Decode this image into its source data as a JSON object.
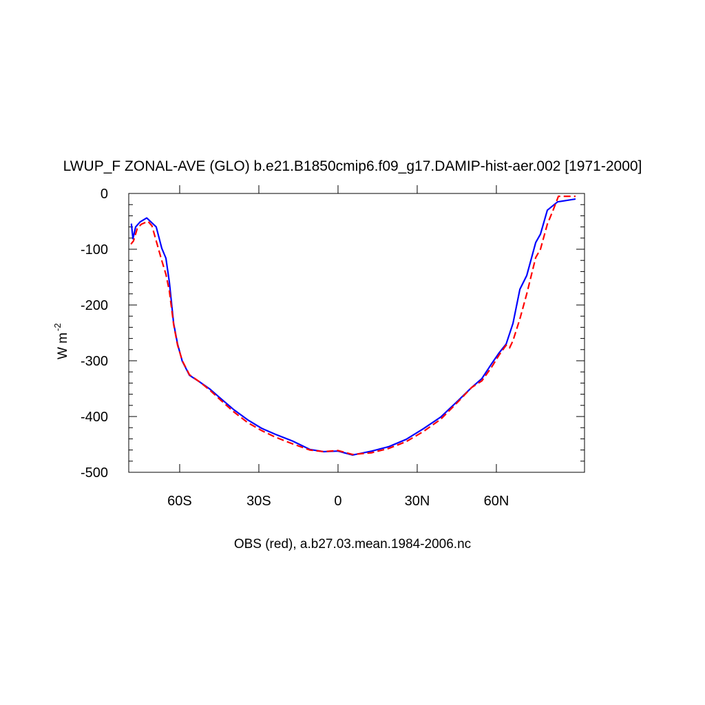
{
  "chart_data": {
    "type": "line",
    "title": "LWUP_F ZONAL-AVE (GLO) b.e21.B1850cmip6.f09_g17.DAMIP-hist-aer.002 [1971-2000]",
    "xlabel": "OBS (red), a.b27.03.mean.1984-2006.nc",
    "ylabel": "W m",
    "ylabel_superscript": "-2",
    "xlim": [
      -79.3,
      93.4
    ],
    "ylim": [
      -500,
      0
    ],
    "xticks": [
      {
        "value": -60,
        "label": "60S"
      },
      {
        "value": -30,
        "label": "30S"
      },
      0,
      {
        "value": 30,
        "label": "30N"
      },
      {
        "value": 60,
        "label": "60N"
      }
    ],
    "yticks": [
      -500,
      -400,
      -300,
      -200,
      -100,
      0
    ],
    "yminor_ticks": [
      -480,
      -460,
      -440,
      -420,
      -380,
      -360,
      -340,
      -320,
      -280,
      -260,
      -240,
      -220,
      -180,
      -160,
      -140,
      -120,
      -80,
      -60,
      -40,
      -20
    ],
    "series": [
      {
        "color": "#0000ff",
        "dash": false,
        "x": [
          -78.3,
          -77.7,
          -76.7,
          -75,
          -72.5,
          -70.7,
          -68.9,
          -66.8,
          -65.2,
          -63.9,
          -62.3,
          -60.8,
          -59,
          -56.3,
          -52.4,
          -48.5,
          -44.6,
          -39.4,
          -34.2,
          -29,
          -23.7,
          -17.2,
          -10.7,
          -5.5,
          0,
          5.5,
          12.8,
          19.3,
          25.8,
          32.3,
          38.9,
          45.4,
          50.6,
          54.5,
          58.4,
          61,
          63.7,
          66.3,
          68.9,
          71.5,
          74.9,
          76.7,
          79.3,
          83.2,
          90
        ],
        "values": [
          -54,
          -81,
          -60,
          -51,
          -44,
          -52,
          -60,
          -98,
          -116,
          -159,
          -233,
          -270,
          -301,
          -326,
          -338,
          -351,
          -367,
          -388,
          -406,
          -421,
          -432,
          -444,
          -459,
          -463,
          -462,
          -469,
          -462,
          -454,
          -441,
          -422,
          -401,
          -372,
          -348,
          -332,
          -304,
          -286,
          -270,
          -233,
          -172,
          -147,
          -88,
          -73,
          -30,
          -15,
          -10
        ]
      },
      {
        "color": "#ff0000",
        "dash": true,
        "x": [
          -78.5,
          -77.5,
          -76,
          -74.5,
          -72,
          -70.5,
          -68.9,
          -66.8,
          -65.2,
          -63.9,
          -62.3,
          -60.8,
          -59,
          -56.3,
          -52.4,
          -48.5,
          -44.6,
          -39.4,
          -34.2,
          -29,
          -23.7,
          -17.2,
          -10.7,
          -5.5,
          0,
          5.5,
          12.8,
          19.3,
          25.8,
          32.3,
          38.9,
          45.4,
          50.6,
          54.5,
          58.4,
          61,
          63.7,
          65,
          66.3,
          68.9,
          71.5,
          74.9,
          76.7,
          79.3,
          81.5,
          83.5,
          90
        ],
        "values": [
          -91,
          -85,
          -62,
          -55,
          -50,
          -58,
          -85,
          -120,
          -145,
          -175,
          -235,
          -272,
          -300,
          -325,
          -338,
          -353,
          -370,
          -392,
          -411,
          -425,
          -437,
          -449,
          -460,
          -463,
          -461,
          -468,
          -465,
          -457,
          -445,
          -427,
          -405,
          -374,
          -348,
          -336,
          -310,
          -290,
          -272,
          -277,
          -264,
          -225,
          -180,
          -115,
          -100,
          -55,
          -30,
          -5,
          -5
        ]
      }
    ]
  }
}
